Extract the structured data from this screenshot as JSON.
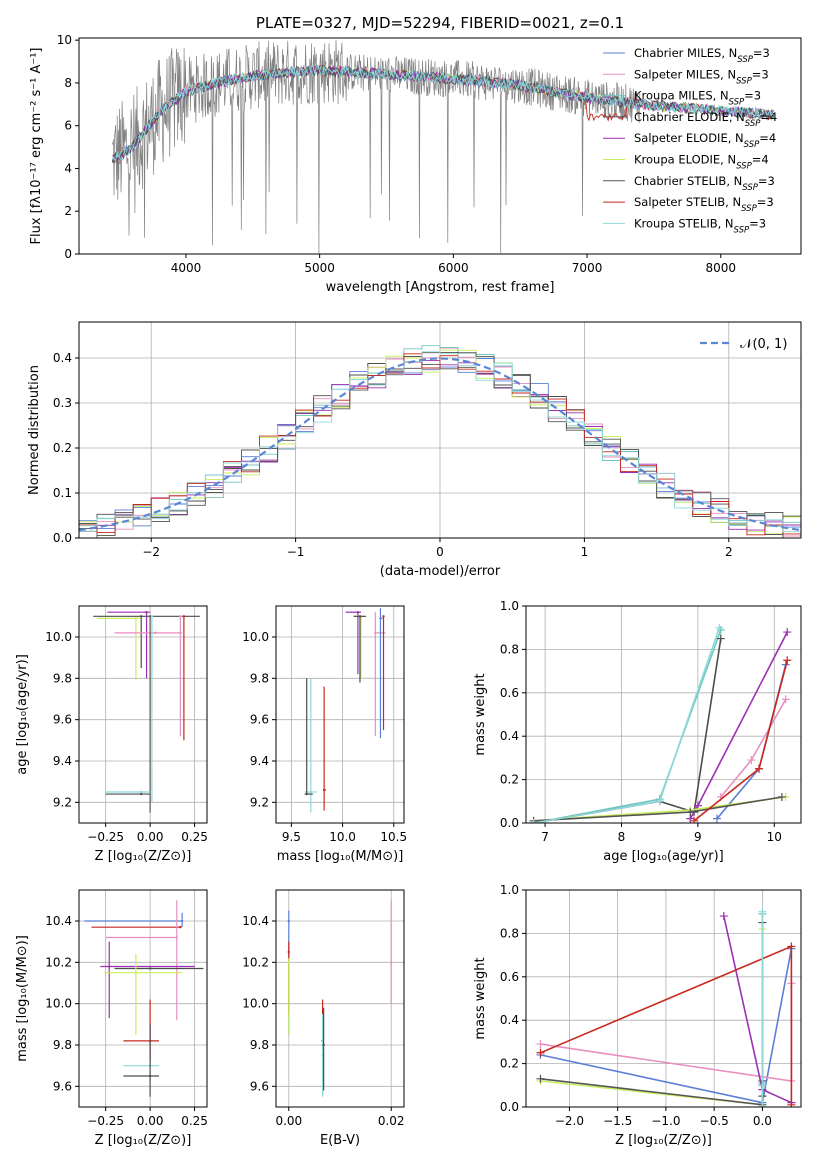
{
  "colors": [
    "#5b7fd6",
    "#e88ec0",
    "#6fc7c2",
    "#4d4d4d",
    "#9c2fb3",
    "#c8ef5a",
    "#555555",
    "#c8281e",
    "#8fd8d8"
  ],
  "chart_data": [
    {
      "id": "spectrum",
      "type": "line",
      "title": "PLATE=0327, MJD=52294, FIBERID=0021, z=0.1",
      "xlabel": "wavelength [Angstrom, rest frame]",
      "ylabel": "Flux [fλ10⁻¹⁷ erg cm⁻² s⁻¹ A⁻¹]",
      "xlim": [
        3200,
        8600
      ],
      "ylim": [
        0,
        10.1
      ],
      "xticks": [
        4000,
        5000,
        6000,
        7000,
        8000
      ],
      "yticks": [
        0,
        2,
        4,
        6,
        8,
        10
      ],
      "legend": "right",
      "legend_entries": [
        {
          "label": "Chabrier MILES, N",
          "sub": "SSP",
          "tail": "=3"
        },
        {
          "label": "Salpeter MILES, N",
          "sub": "SSP",
          "tail": "=3"
        },
        {
          "label": "Kroupa MILES, N",
          "sub": "SSP",
          "tail": "=3"
        },
        {
          "label": "Chabrier ELODIE, N",
          "sub": "SSP",
          "tail": "=4"
        },
        {
          "label": "Salpeter ELODIE, N",
          "sub": "SSP",
          "tail": "=4"
        },
        {
          "label": "Kroupa ELODIE, N",
          "sub": "SSP",
          "tail": "=4"
        },
        {
          "label": "Chabrier STELIB, N",
          "sub": "SSP",
          "tail": "=3"
        },
        {
          "label": "Salpeter STELIB, N",
          "sub": "SSP",
          "tail": "=3"
        },
        {
          "label": "Kroupa STELIB, N",
          "sub": "SSP",
          "tail": "=3"
        }
      ],
      "continuum": {
        "x": [
          3450,
          3600,
          3800,
          4000,
          4300,
          4600,
          5000,
          5500,
          6000,
          6500,
          7000,
          7400,
          7800,
          8200,
          8400
        ],
        "y": [
          4.4,
          5.0,
          6.6,
          7.6,
          8.1,
          8.4,
          8.6,
          8.4,
          8.2,
          7.9,
          7.3,
          7.0,
          6.8,
          6.6,
          6.5
        ]
      }
    },
    {
      "id": "residuals",
      "type": "histogram",
      "xlabel": "(data-model)/error",
      "ylabel": "Normed distribution",
      "xlim": [
        -2.5,
        2.5
      ],
      "ylim": [
        0,
        0.48
      ],
      "xticks": [
        -2,
        -1,
        0,
        1,
        2
      ],
      "yticks": [
        0.0,
        0.1,
        0.2,
        0.3,
        0.4
      ],
      "grid": true,
      "legend_label": "𝒩(0, 1)",
      "reference_curve": "gaussian(0,1)"
    },
    {
      "id": "age_vs_Z",
      "type": "errorbar",
      "xlabel": "Z [log₁₀(Z/Z⊙)]",
      "ylabel": "age  [log₁₀(age/yr)]",
      "xlim": [
        -0.4,
        0.32
      ],
      "ylim": [
        9.1,
        10.15
      ],
      "xticks": [
        -0.25,
        0.0,
        0.25
      ],
      "xtick_labels": [
        "−0.25",
        "0.00",
        "0.25"
      ],
      "yticks": [
        9.2,
        9.4,
        9.6,
        9.8,
        10.0
      ],
      "grid": true,
      "points": [
        {
          "x": -0.02,
          "y": 10.12,
          "xerr": [
            0.22,
            0.02
          ],
          "yerr": [
            0.32,
            0
          ],
          "c": 4
        },
        {
          "x": -0.05,
          "y": 10.1,
          "xerr": [
            0.27,
            0.33
          ],
          "yerr": [
            0.25,
            0
          ],
          "c": 3
        },
        {
          "x": -0.08,
          "y": 10.09,
          "xerr": [
            0.22,
            0.02
          ],
          "yerr": [
            0.3,
            0
          ],
          "c": 5
        },
        {
          "x": 0.03,
          "y": 10.02,
          "xerr": [
            0.23,
            0.15
          ],
          "yerr": [
            0,
            0
          ],
          "c": 1
        },
        {
          "x": 0.17,
          "y": 10.1,
          "xerr": [
            0,
            0.01
          ],
          "yerr": [
            0.58,
            0
          ],
          "c": 1
        },
        {
          "x": 0.19,
          "y": 10.1,
          "xerr": [
            0,
            0
          ],
          "yerr": [
            0.6,
            0
          ],
          "c": 7
        },
        {
          "x": 0.0,
          "y": 10.1,
          "xerr": [
            0,
            0
          ],
          "yerr": [
            0.95,
            0
          ],
          "c": 6
        },
        {
          "x": 0.01,
          "y": 10.1,
          "xerr": [
            0,
            0
          ],
          "yerr": [
            0.9,
            0
          ],
          "c": 8
        },
        {
          "x": -0.05,
          "y": 9.25,
          "xerr": [
            0.2,
            0.05
          ],
          "yerr": [
            0,
            0
          ],
          "c": 8
        },
        {
          "x": -0.05,
          "y": 9.24,
          "xerr": [
            0.2,
            0.05
          ],
          "yerr": [
            0,
            0
          ],
          "c": 3
        }
      ]
    },
    {
      "id": "age_vs_mass",
      "type": "errorbar",
      "xlabel": "mass [log₁₀(M/M⊙)]",
      "ylabel": "",
      "xlim": [
        9.35,
        10.6
      ],
      "ylim": [
        9.1,
        10.15
      ],
      "xticks": [
        9.5,
        10.0,
        10.5
      ],
      "xtick_labels": [
        "9.5",
        "10.0",
        "10.5"
      ],
      "yticks": [
        9.2,
        9.4,
        9.6,
        9.8,
        10.0
      ],
      "grid": true,
      "points": [
        {
          "x": 10.15,
          "y": 10.12,
          "xerr": [
            0.12,
            0.03
          ],
          "yerr": [
            0.3,
            0
          ],
          "c": 4
        },
        {
          "x": 10.18,
          "y": 10.1,
          "xerr": [
            0.08,
            0.02
          ],
          "yerr": [
            0.3,
            0
          ],
          "c": 5
        },
        {
          "x": 10.17,
          "y": 10.1,
          "xerr": [
            0.06,
            0.06
          ],
          "yerr": [
            0.32,
            0
          ],
          "c": 3
        },
        {
          "x": 10.32,
          "y": 10.02,
          "xerr": [
            0.0,
            0.1
          ],
          "yerr": [
            0.5,
            0.1
          ],
          "c": 1
        },
        {
          "x": 10.37,
          "y": 10.09,
          "xerr": [
            0,
            0.02
          ],
          "yerr": [
            0.58,
            0.05
          ],
          "c": 0
        },
        {
          "x": 10.4,
          "y": 10.1,
          "xerr": [
            0,
            0
          ],
          "yerr": [
            0.55,
            0
          ],
          "c": 7
        },
        {
          "x": 9.69,
          "y": 9.25,
          "xerr": [
            0.06,
            0.06
          ],
          "yerr": [
            0.1,
            0.55
          ],
          "c": 8
        },
        {
          "x": 9.65,
          "y": 9.24,
          "xerr": [
            0.02,
            0.06
          ],
          "yerr": [
            0,
            0.56
          ],
          "c": 3
        },
        {
          "x": 9.82,
          "y": 9.26,
          "xerr": [
            0,
            0.02
          ],
          "yerr": [
            0.1,
            0.5
          ],
          "c": 7
        }
      ]
    },
    {
      "id": "weight_vs_age",
      "type": "line",
      "xlabel": "age  [log₁₀(age/yr)]",
      "ylabel": "mass weight",
      "xlim": [
        6.75,
        10.35
      ],
      "ylim": [
        0,
        1.0
      ],
      "xticks": [
        7,
        8,
        9,
        10
      ],
      "yticks": [
        0.0,
        0.2,
        0.4,
        0.6,
        0.8,
        1.0
      ],
      "grid": true,
      "series": [
        {
          "c": 0,
          "x": [
            9.25,
            9.8,
            10.15
          ],
          "y": [
            0.02,
            0.25,
            0.73
          ]
        },
        {
          "c": 1,
          "x": [
            9.3,
            9.7,
            10.15
          ],
          "y": [
            0.12,
            0.29,
            0.57
          ]
        },
        {
          "c": 2,
          "x": [
            6.85,
            8.5,
            9.3
          ],
          "y": [
            0.0,
            0.11,
            0.89
          ]
        },
        {
          "c": 3,
          "x": [
            6.85,
            8.5,
            8.95,
            9.3
          ],
          "y": [
            0.0,
            0.1,
            0.05,
            0.85
          ]
        },
        {
          "c": 4,
          "x": [
            8.9,
            9.0,
            10.17
          ],
          "y": [
            0.02,
            0.08,
            0.88
          ]
        },
        {
          "c": 5,
          "x": [
            6.85,
            8.9,
            10.15
          ],
          "y": [
            0.01,
            0.06,
            0.12
          ]
        },
        {
          "c": 6,
          "x": [
            6.85,
            8.9,
            10.1
          ],
          "y": [
            0.01,
            0.05,
            0.12
          ]
        },
        {
          "c": 7,
          "x": [
            8.95,
            9.8,
            10.17
          ],
          "y": [
            0.01,
            0.25,
            0.75
          ]
        },
        {
          "c": 8,
          "x": [
            6.85,
            8.5,
            9.28
          ],
          "y": [
            0.0,
            0.1,
            0.9
          ]
        }
      ]
    },
    {
      "id": "mass_vs_Z",
      "type": "errorbar",
      "xlabel": "Z [log₁₀(Z/Z⊙)]",
      "ylabel": "mass [log₁₀(M/M⊙)]",
      "xlim": [
        -0.4,
        0.32
      ],
      "ylim": [
        9.5,
        10.55
      ],
      "xticks": [
        -0.25,
        0.0,
        0.25
      ],
      "xtick_labels": [
        "−0.25",
        "0.00",
        "0.25"
      ],
      "yticks": [
        9.6,
        9.8,
        10.0,
        10.2,
        10.4
      ],
      "grid": true,
      "points": [
        {
          "x": 0.18,
          "y": 10.4,
          "xerr": [
            0.55,
            0
          ],
          "yerr": [
            0.03,
            0.04
          ],
          "c": 0
        },
        {
          "x": 0.17,
          "y": 10.37,
          "xerr": [
            0.5,
            0
          ],
          "yerr": [
            0,
            0
          ],
          "c": 7
        },
        {
          "x": 0.15,
          "y": 10.32,
          "xerr": [
            0.4,
            0
          ],
          "yerr": [
            0.4,
            0.18
          ],
          "c": 1
        },
        {
          "x": -0.23,
          "y": 10.18,
          "xerr": [
            0.05,
            0.48
          ],
          "yerr": [
            0.25,
            0.12
          ],
          "c": 4
        },
        {
          "x": 0.0,
          "y": 10.17,
          "xerr": [
            0.2,
            0.3
          ],
          "yerr": [
            0,
            0
          ],
          "c": 3
        },
        {
          "x": -0.08,
          "y": 10.15,
          "xerr": [
            0.18,
            0.26
          ],
          "yerr": [
            0.3,
            0.09
          ],
          "c": 5
        },
        {
          "x": 0.0,
          "y": 9.82,
          "xerr": [
            0.15,
            0.05
          ],
          "yerr": [
            0.1,
            0.2
          ],
          "c": 7
        },
        {
          "x": 0.0,
          "y": 9.7,
          "xerr": [
            0.15,
            0.05
          ],
          "yerr": [
            0,
            0
          ],
          "c": 8
        },
        {
          "x": 0.0,
          "y": 9.65,
          "xerr": [
            0.15,
            0.05
          ],
          "yerr": [
            0.1,
            0.25
          ],
          "c": 3
        }
      ]
    },
    {
      "id": "mass_vs_EBV",
      "type": "errorbar",
      "xlabel": "E(B-V)",
      "ylabel": "",
      "xlim": [
        -0.0025,
        0.0225
      ],
      "ylim": [
        9.5,
        10.55
      ],
      "xticks": [
        0.0,
        0.02
      ],
      "xtick_labels": [
        "0.00",
        "0.02"
      ],
      "yticks": [
        9.6,
        9.8,
        10.0,
        10.2,
        10.4
      ],
      "grid": true,
      "points": [
        {
          "x": 0.0,
          "y": 10.4,
          "xerr": [
            0,
            0
          ],
          "yerr": [
            0.55,
            0.05
          ],
          "c": 0
        },
        {
          "x": 0.0,
          "y": 10.25,
          "xerr": [
            0,
            0
          ],
          "yerr": [
            0.3,
            0.05
          ],
          "c": 7
        },
        {
          "x": 0.0,
          "y": 10.2,
          "xerr": [
            0,
            0
          ],
          "yerr": [
            0.35,
            0.02
          ],
          "c": 5
        },
        {
          "x": 0.0066,
          "y": 9.82,
          "xerr": [
            0,
            0
          ],
          "yerr": [
            0.26,
            0.2
          ],
          "c": 7
        },
        {
          "x": 0.0066,
          "y": 9.75,
          "xerr": [
            0,
            0
          ],
          "yerr": [
            0.2,
            0.2
          ],
          "c": 8
        },
        {
          "x": 0.0068,
          "y": 9.8,
          "xerr": [
            0,
            0
          ],
          "yerr": [
            0.22,
            0.18
          ],
          "c": 3
        },
        {
          "x": 0.02,
          "y": 10.2,
          "xerr": [
            0,
            0
          ],
          "yerr": [
            0.2,
            0.3
          ],
          "c": 1
        }
      ]
    },
    {
      "id": "weight_vs_Z",
      "type": "line",
      "xlabel": "Z [log₁₀(Z/Z⊙)]",
      "ylabel": "mass weight",
      "xlim": [
        -2.45,
        0.4
      ],
      "ylim": [
        0,
        1.0
      ],
      "xticks": [
        -2.0,
        -1.5,
        -1.0,
        -0.5,
        0.0
      ],
      "xtick_labels": [
        "−2.0",
        "−1.5",
        "−1.0",
        "−0.5",
        "0.0"
      ],
      "yticks": [
        0.0,
        0.2,
        0.4,
        0.6,
        0.8,
        1.0
      ],
      "grid": true,
      "series": [
        {
          "c": 0,
          "x": [
            -2.3,
            0.0,
            0.3
          ],
          "y": [
            0.24,
            0.02,
            0.73
          ]
        },
        {
          "c": 1,
          "x": [
            -2.3,
            0.3,
            0.3
          ],
          "y": [
            0.29,
            0.12,
            0.57
          ]
        },
        {
          "c": 2,
          "x": [
            0.0,
            0.0,
            0.0
          ],
          "y": [
            0.0,
            0.11,
            0.89
          ]
        },
        {
          "c": 3,
          "x": [
            0.0,
            0.0,
            0.0
          ],
          "y": [
            0.05,
            0.1,
            0.85
          ]
        },
        {
          "c": 4,
          "x": [
            -0.4,
            0.0,
            0.3
          ],
          "y": [
            0.88,
            0.08,
            0.02
          ]
        },
        {
          "c": 5,
          "x": [
            -2.3,
            0.0,
            0.0
          ],
          "y": [
            0.12,
            0.01,
            0.82
          ]
        },
        {
          "c": 6,
          "x": [
            -2.3,
            0.0,
            0.0
          ],
          "y": [
            0.13,
            0.01,
            0.12
          ]
        },
        {
          "c": 7,
          "x": [
            -2.3,
            0.3,
            0.3
          ],
          "y": [
            0.25,
            0.74,
            0.01
          ]
        },
        {
          "c": 8,
          "x": [
            0.0,
            0.0,
            0.0
          ],
          "y": [
            0.0,
            0.1,
            0.9
          ]
        }
      ]
    }
  ]
}
